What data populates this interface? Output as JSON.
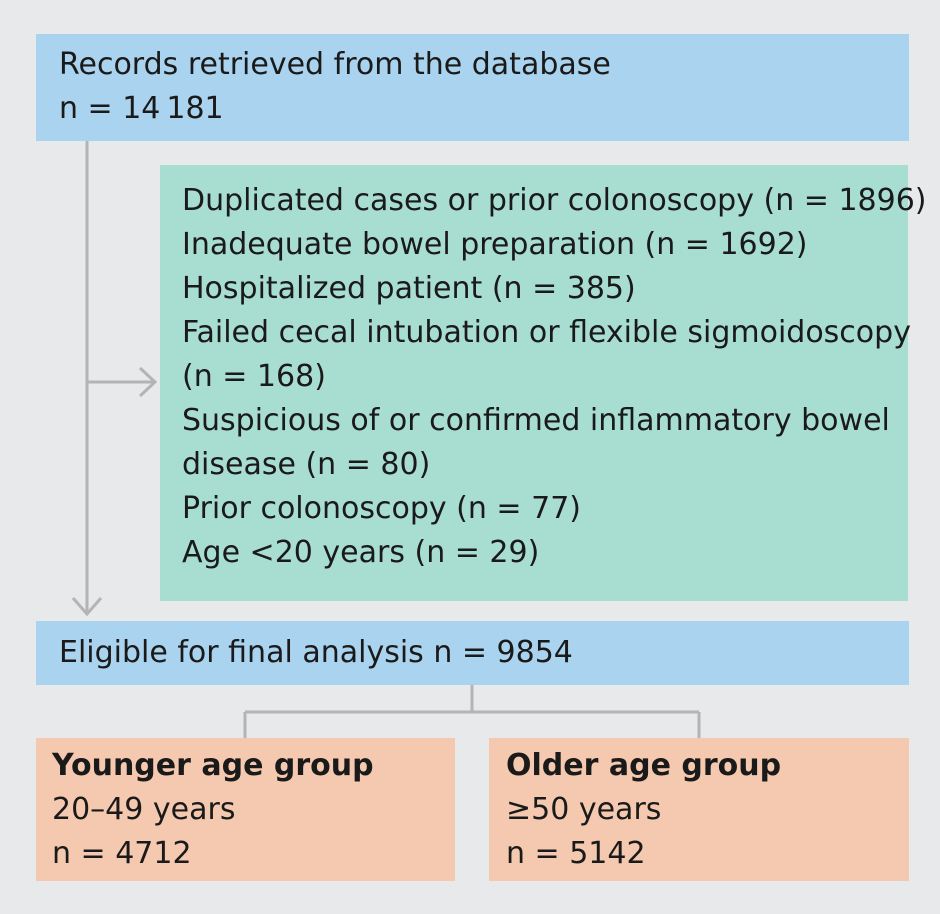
{
  "records": {
    "title": "Records retrieved from the database",
    "count": "n = 14 181"
  },
  "exclusions": {
    "lines": [
      "Duplicated cases or prior colonoscopy (n = 1896)",
      "Inadequate bowel preparation (n = 1692)",
      "Hospitalized patient (n = 385)",
      "Failed cecal intubation or flexible sigmoidoscopy",
      "(n = 168)",
      "Suspicious of or confirmed inflammatory bowel",
      "disease (n = 80)",
      "Prior colonoscopy (n = 77)",
      "Age <20 years (n = 29)"
    ]
  },
  "eligible": {
    "label": "Eligible for final analysis n = 9854"
  },
  "younger_group": {
    "title": "Younger age group",
    "range": "20–49 years",
    "count": "n = 4712"
  },
  "older_group": {
    "title": "Older age group",
    "range": "≥50 years",
    "count": "n = 5142"
  },
  "colors": {
    "blue_box": "#a9d3ee",
    "green_box": "#a8ddd2",
    "peach_box": "#f5c8b0",
    "connector": "#b4b4b4",
    "background": "#e8e9eb"
  }
}
